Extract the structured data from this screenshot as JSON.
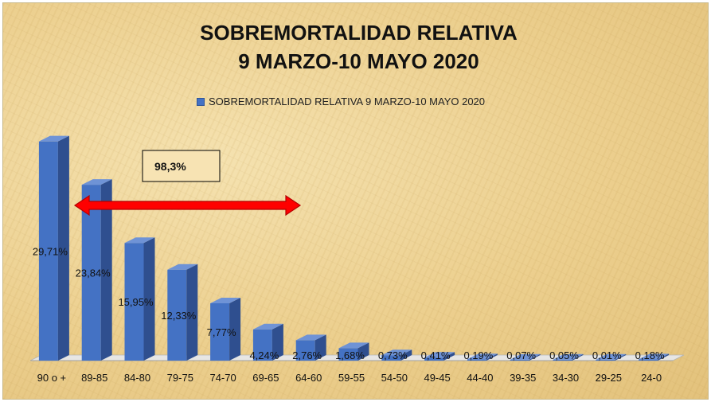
{
  "chart_data": {
    "type": "bar",
    "title": "SOBREMORTALIDAD RELATIVA",
    "subtitle": "9 MARZO-10 MAYO 2020",
    "legend": "SOBREMORTALIDAD RELATIVA 9 MARZO-10 MAYO 2020",
    "legend_position": "top",
    "categories": [
      "90 o +",
      "89-85",
      "84-80",
      "79-75",
      "74-70",
      "69-65",
      "64-60",
      "59-55",
      "54-50",
      "49-45",
      "44-40",
      "39-35",
      "34-30",
      "29-25",
      "24-0"
    ],
    "series": [
      {
        "name": "SOBREMORTALIDAD RELATIVA 9 MARZO-10 MAYO 2020",
        "values": [
          29.71,
          23.84,
          15.95,
          12.33,
          7.77,
          4.24,
          2.76,
          1.68,
          0.73,
          0.41,
          0.19,
          0.07,
          0.05,
          0.01,
          0.18
        ],
        "labels": [
          "29,71%",
          "23,84%",
          "15,95%",
          "12,33%",
          "7,77%",
          "4,24%",
          "2,76%",
          "1,68%",
          "0,73%",
          "0,41%",
          "0,19%",
          "0,07%",
          "0,05%",
          "0,01%",
          "0,18%"
        ]
      }
    ],
    "annotation": "98,3%",
    "bar_color": "#4472c4",
    "arrow_color": "#ff0000",
    "grid": false,
    "ylim": [
      0,
      30
    ]
  }
}
